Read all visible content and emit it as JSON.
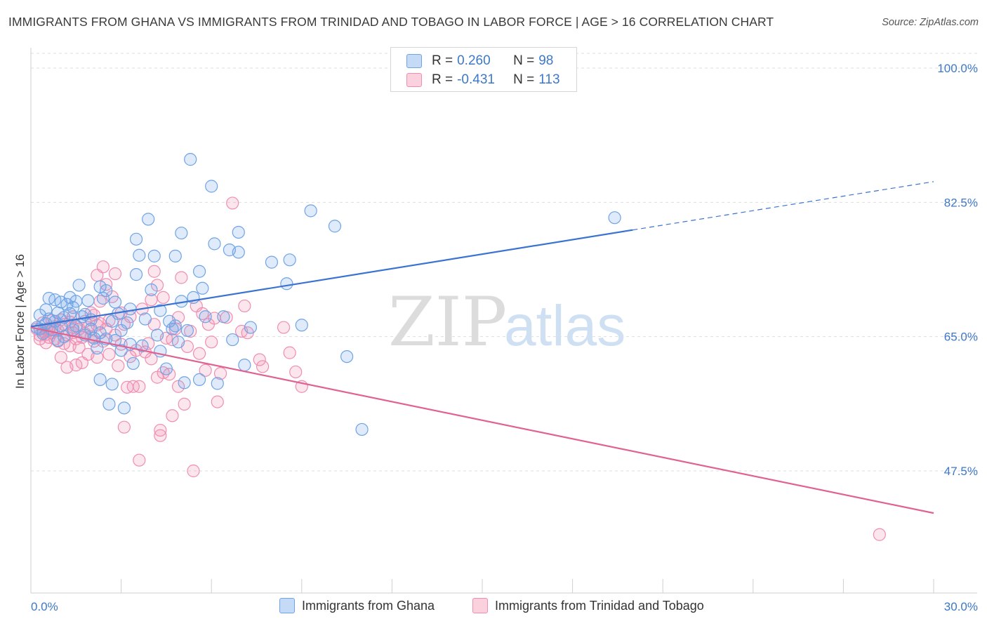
{
  "title": "IMMIGRANTS FROM GHANA VS IMMIGRANTS FROM TRINIDAD AND TOBAGO IN LABOR FORCE | AGE > 16 CORRELATION CHART",
  "source": "Source: ZipAtlas.com",
  "watermark": {
    "zip": "ZIP",
    "atlas": "atlas"
  },
  "legend_stats": [
    {
      "r_label": "R =",
      "r_value": "0.260",
      "n_label": "N =",
      "n_value": "98",
      "color": "#6fa3e6"
    },
    {
      "r_label": "R =",
      "r_value": "-0.431",
      "n_label": "N =",
      "n_value": "113",
      "color": "#f08db0"
    }
  ],
  "chart_data": {
    "type": "scatter",
    "title": "IMMIGRANTS FROM GHANA VS IMMIGRANTS FROM TRINIDAD AND TOBAGO IN LABOR FORCE | AGE > 16 CORRELATION CHART",
    "xlabel": "",
    "ylabel": "In Labor Force | Age > 16",
    "xlim": [
      0,
      30
    ],
    "ylim": [
      32.5,
      102
    ],
    "x_tick_labels": [
      "0.0%",
      "30.0%"
    ],
    "y_ticks": [
      47.5,
      65.0,
      82.5,
      100.0
    ],
    "y_tick_labels": [
      "47.5%",
      "65.0%",
      "82.5%",
      "100.0%"
    ],
    "grid": true,
    "legend_position": "bottom",
    "series": [
      {
        "name": "Immigrants from Ghana",
        "color": "#6fa3e6",
        "trend": {
          "x0": 0,
          "y0": 66.3,
          "x1": 20.0,
          "y1": 78.9,
          "dash_to_x": 30,
          "dash_to_y": 85.2
        },
        "points": [
          [
            0.2,
            66.2
          ],
          [
            0.3,
            67.8
          ],
          [
            0.3,
            66.0
          ],
          [
            0.4,
            65.4
          ],
          [
            0.5,
            68.5
          ],
          [
            0.5,
            66.7
          ],
          [
            0.6,
            70.0
          ],
          [
            0.6,
            67.3
          ],
          [
            0.7,
            65.9
          ],
          [
            0.8,
            69.8
          ],
          [
            0.8,
            67.0
          ],
          [
            0.9,
            68.1
          ],
          [
            1.0,
            69.5
          ],
          [
            1.0,
            66.4
          ],
          [
            1.1,
            67.5
          ],
          [
            1.1,
            65.0
          ],
          [
            1.2,
            69.2
          ],
          [
            1.3,
            70.1
          ],
          [
            1.3,
            68.0
          ],
          [
            1.4,
            65.9
          ],
          [
            1.5,
            69.6
          ],
          [
            1.5,
            66.4
          ],
          [
            1.6,
            71.7
          ],
          [
            1.7,
            67.6
          ],
          [
            1.8,
            65.2
          ],
          [
            1.9,
            69.7
          ],
          [
            2.0,
            67.2
          ],
          [
            2.1,
            64.8
          ],
          [
            2.2,
            63.5
          ],
          [
            2.3,
            71.5
          ],
          [
            2.3,
            59.4
          ],
          [
            2.4,
            70.0
          ],
          [
            2.5,
            64.7
          ],
          [
            2.5,
            71.0
          ],
          [
            2.6,
            56.2
          ],
          [
            2.7,
            58.8
          ],
          [
            2.7,
            67.0
          ],
          [
            2.8,
            69.5
          ],
          [
            2.8,
            64.5
          ],
          [
            2.9,
            68.0
          ],
          [
            3.0,
            65.8
          ],
          [
            3.0,
            63.2
          ],
          [
            3.1,
            55.7
          ],
          [
            3.2,
            66.8
          ],
          [
            3.3,
            68.6
          ],
          [
            3.3,
            64.0
          ],
          [
            3.4,
            61.5
          ],
          [
            3.5,
            77.7
          ],
          [
            3.5,
            73.1
          ],
          [
            3.6,
            75.6
          ],
          [
            3.7,
            63.8
          ],
          [
            3.9,
            80.3
          ],
          [
            4.0,
            71.1
          ],
          [
            4.1,
            75.5
          ],
          [
            4.2,
            65.2
          ],
          [
            4.3,
            68.4
          ],
          [
            4.3,
            63.1
          ],
          [
            4.5,
            60.8
          ],
          [
            4.6,
            67.0
          ],
          [
            4.8,
            75.5
          ],
          [
            4.8,
            66.4
          ],
          [
            4.9,
            64.3
          ],
          [
            5.0,
            69.6
          ],
          [
            5.0,
            78.5
          ],
          [
            5.1,
            59.0
          ],
          [
            5.2,
            65.8
          ],
          [
            5.3,
            88.1
          ],
          [
            5.4,
            70.1
          ],
          [
            5.6,
            73.5
          ],
          [
            5.6,
            59.4
          ],
          [
            5.7,
            71.3
          ],
          [
            5.8,
            67.6
          ],
          [
            6.0,
            84.6
          ],
          [
            6.1,
            77.1
          ],
          [
            6.2,
            58.9
          ],
          [
            6.4,
            67.6
          ],
          [
            6.6,
            76.3
          ],
          [
            6.7,
            64.6
          ],
          [
            6.9,
            76.0
          ],
          [
            6.9,
            78.6
          ],
          [
            7.1,
            61.3
          ],
          [
            7.3,
            66.2
          ],
          [
            8.0,
            74.7
          ],
          [
            8.5,
            71.9
          ],
          [
            8.6,
            75.0
          ],
          [
            9.0,
            66.5
          ],
          [
            9.3,
            81.4
          ],
          [
            10.1,
            79.4
          ],
          [
            10.5,
            62.4
          ],
          [
            11.0,
            52.9
          ],
          [
            19.4,
            80.5
          ],
          [
            2.3,
            65.5
          ],
          [
            1.8,
            67.9
          ],
          [
            0.9,
            64.5
          ],
          [
            3.8,
            67.3
          ],
          [
            4.7,
            66.0
          ],
          [
            2.0,
            66.0
          ],
          [
            1.4,
            68.8
          ]
        ]
      },
      {
        "name": "Immigrants from Trinidad and Tobago",
        "color": "#f08db0",
        "trend": {
          "x0": 0,
          "y0": 66.2,
          "x1": 30.0,
          "y1": 42.0
        },
        "points": [
          [
            0.2,
            66.0
          ],
          [
            0.3,
            65.2
          ],
          [
            0.3,
            64.7
          ],
          [
            0.4,
            65.7
          ],
          [
            0.4,
            66.8
          ],
          [
            0.5,
            64.2
          ],
          [
            0.5,
            65.3
          ],
          [
            0.6,
            66.1
          ],
          [
            0.6,
            64.9
          ],
          [
            0.7,
            65.5
          ],
          [
            0.7,
            67.1
          ],
          [
            0.8,
            64.7
          ],
          [
            0.8,
            66.3
          ],
          [
            0.9,
            65.8
          ],
          [
            0.9,
            64.4
          ],
          [
            1.0,
            62.3
          ],
          [
            1.0,
            67.2
          ],
          [
            1.1,
            66.6
          ],
          [
            1.1,
            64.1
          ],
          [
            1.2,
            65.2
          ],
          [
            1.2,
            61.0
          ],
          [
            1.3,
            66.9
          ],
          [
            1.3,
            63.8
          ],
          [
            1.4,
            65.5
          ],
          [
            1.4,
            67.6
          ],
          [
            1.5,
            61.3
          ],
          [
            1.5,
            64.7
          ],
          [
            1.6,
            66.0
          ],
          [
            1.6,
            63.6
          ],
          [
            1.7,
            64.9
          ],
          [
            1.7,
            61.6
          ],
          [
            1.8,
            67.0
          ],
          [
            1.8,
            65.4
          ],
          [
            1.9,
            62.7
          ],
          [
            1.9,
            66.2
          ],
          [
            2.0,
            65.0
          ],
          [
            2.0,
            68.1
          ],
          [
            2.1,
            64.4
          ],
          [
            2.1,
            67.8
          ],
          [
            2.2,
            73.0
          ],
          [
            2.2,
            62.3
          ],
          [
            2.3,
            66.7
          ],
          [
            2.3,
            69.6
          ],
          [
            2.4,
            74.1
          ],
          [
            2.4,
            64.4
          ],
          [
            2.5,
            71.8
          ],
          [
            2.5,
            66.0
          ],
          [
            2.6,
            62.7
          ],
          [
            2.6,
            67.1
          ],
          [
            2.7,
            70.2
          ],
          [
            2.8,
            65.2
          ],
          [
            2.8,
            73.2
          ],
          [
            2.9,
            61.2
          ],
          [
            3.0,
            64.0
          ],
          [
            3.0,
            68.1
          ],
          [
            3.1,
            53.2
          ],
          [
            3.1,
            66.6
          ],
          [
            3.2,
            58.4
          ],
          [
            3.3,
            62.4
          ],
          [
            3.3,
            67.6
          ],
          [
            3.4,
            58.5
          ],
          [
            3.5,
            63.2
          ],
          [
            3.6,
            48.9
          ],
          [
            3.6,
            58.5
          ],
          [
            3.7,
            68.6
          ],
          [
            3.8,
            63.0
          ],
          [
            3.9,
            64.1
          ],
          [
            4.0,
            62.1
          ],
          [
            4.0,
            69.8
          ],
          [
            4.1,
            66.6
          ],
          [
            4.1,
            73.5
          ],
          [
            4.2,
            59.7
          ],
          [
            4.2,
            71.7
          ],
          [
            4.3,
            52.1
          ],
          [
            4.3,
            52.8
          ],
          [
            4.4,
            60.3
          ],
          [
            4.4,
            70.1
          ],
          [
            4.5,
            64.8
          ],
          [
            4.6,
            60.1
          ],
          [
            4.7,
            54.7
          ],
          [
            4.7,
            64.6
          ],
          [
            4.8,
            66.0
          ],
          [
            4.9,
            67.5
          ],
          [
            4.9,
            58.5
          ],
          [
            5.0,
            72.7
          ],
          [
            5.1,
            56.2
          ],
          [
            5.2,
            63.7
          ],
          [
            5.3,
            65.7
          ],
          [
            5.4,
            47.5
          ],
          [
            5.5,
            69.0
          ],
          [
            5.6,
            62.8
          ],
          [
            5.7,
            68.0
          ],
          [
            5.8,
            60.6
          ],
          [
            5.9,
            66.6
          ],
          [
            6.0,
            64.3
          ],
          [
            6.1,
            67.4
          ],
          [
            6.2,
            56.5
          ],
          [
            6.3,
            60.2
          ],
          [
            6.5,
            67.5
          ],
          [
            6.7,
            82.4
          ],
          [
            7.0,
            65.7
          ],
          [
            7.1,
            69.0
          ],
          [
            7.2,
            65.5
          ],
          [
            7.6,
            62.0
          ],
          [
            7.7,
            61.1
          ],
          [
            8.4,
            66.2
          ],
          [
            8.6,
            62.9
          ],
          [
            8.8,
            60.4
          ],
          [
            9.0,
            58.5
          ],
          [
            28.2,
            39.2
          ],
          [
            1.4,
            66.2
          ],
          [
            0.6,
            65.8
          ],
          [
            2.2,
            66.5
          ]
        ]
      }
    ]
  }
}
